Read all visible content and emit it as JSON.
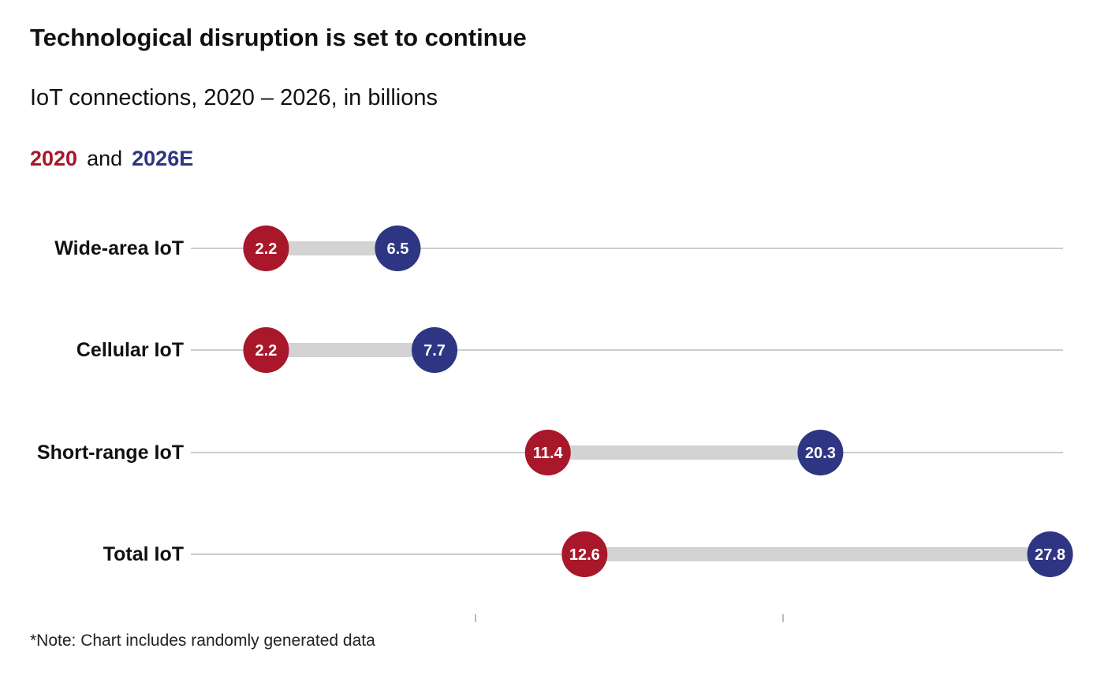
{
  "title": "Technological disruption is set to continue",
  "subtitle": "IoT connections, 2020 – 2026, in billions",
  "legend": {
    "first_label": "2020",
    "connector": "and",
    "second_label": "2026E"
  },
  "note": "*Note: Chart includes randomly generated data",
  "colors": {
    "series_2020": "#a8172a",
    "series_2026E": "#2e3582",
    "connector_bar": "#d3d3d3",
    "gridline": "#cccccc"
  },
  "chart_data": {
    "type": "dumbbell",
    "categories": [
      "Wide-area IoT",
      "Cellular IoT",
      "Short-range IoT",
      "Total IoT"
    ],
    "series": [
      {
        "name": "2020",
        "values": [
          2.2,
          2.2,
          11.4,
          12.6
        ]
      },
      {
        "name": "2026E",
        "values": [
          6.5,
          7.7,
          20.3,
          27.8
        ]
      }
    ],
    "value_labels": {
      "2020": [
        "2.2",
        "2.2",
        "11.4",
        "12.6"
      ],
      "2026E": [
        "6.5",
        "7.7",
        "20.3",
        "27.8"
      ]
    },
    "xlim": [
      0,
      29.2
    ],
    "x_ticks_visible_labels": false,
    "grid": true
  }
}
